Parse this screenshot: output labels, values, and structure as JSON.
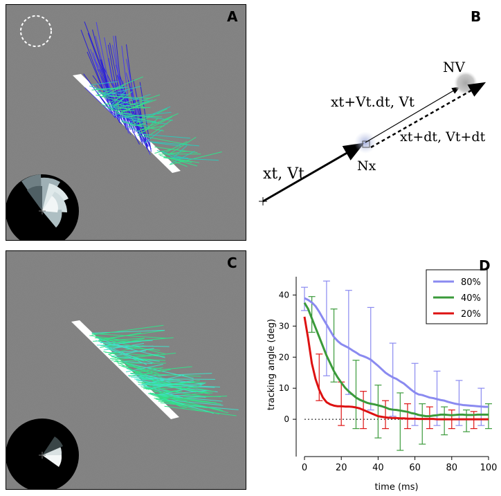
{
  "panels": {
    "A": {
      "label": "A"
    },
    "B": {
      "label": "B"
    },
    "C": {
      "label": "C"
    },
    "D": {
      "label": "D"
    }
  },
  "diagram": {
    "state_t": "xt, Vt",
    "state_pred": "xt+Vt.dt, Vt",
    "state_next": "xt+dt, Vt+dt",
    "noise_x": "Nx",
    "noise_v": "NV"
  },
  "colors": {
    "stimulus_bg": "#7f7f7f",
    "bar": "#ffffff",
    "series_80": "#8a8af0",
    "series_40": "#3a9a3a",
    "series_20": "#dd1111",
    "vectors_blue": "#2a20d8",
    "vectors_green": "#33e08a"
  },
  "chart_data": {
    "type": "line",
    "xlabel": "time (ms)",
    "ylabel": "tracking angle (deg)",
    "xlim": [
      0,
      100
    ],
    "ylim": [
      -12,
      45
    ],
    "xticks": [
      0,
      20,
      40,
      60,
      80,
      100
    ],
    "yticks": [
      0,
      10,
      20,
      30,
      40
    ],
    "legend_position": "top-right",
    "baseline": {
      "y": 0,
      "style": "dotted"
    },
    "x": [
      0,
      2,
      4,
      6,
      8,
      10,
      12,
      14,
      16,
      18,
      20,
      22,
      24,
      26,
      28,
      30,
      32,
      34,
      36,
      38,
      40,
      42,
      44,
      46,
      48,
      50,
      52,
      54,
      56,
      58,
      60,
      62,
      64,
      66,
      68,
      70,
      72,
      74,
      76,
      78,
      80,
      82,
      84,
      86,
      88,
      90,
      92,
      94,
      96,
      98,
      100
    ],
    "series": [
      {
        "name": "80%",
        "color": "#8a8af0",
        "values": [
          39,
          38.4,
          37.6,
          36.4,
          34.6,
          32.5,
          30.5,
          28.5,
          26.5,
          25.2,
          24.2,
          23.6,
          23.0,
          22.2,
          21.5,
          20.7,
          20.3,
          19.8,
          19.2,
          18.2,
          17.2,
          16.1,
          15.0,
          14.2,
          13.5,
          13.0,
          12.2,
          11.5,
          10.5,
          9.5,
          8.6,
          8.0,
          7.8,
          7.4,
          7.0,
          6.8,
          6.5,
          6.2,
          6.0,
          5.6,
          5.3,
          5.0,
          4.8,
          4.6,
          4.5,
          4.4,
          4.3,
          4.2,
          4.1,
          4.0,
          4.0
        ],
        "errorbars": {
          "x": [
            0,
            12,
            24,
            36,
            48,
            60,
            72,
            84,
            96
          ],
          "low": [
            35,
            14,
            8,
            3,
            1,
            -2,
            -2,
            -2,
            -2
          ],
          "high": [
            42.5,
            44.5,
            41.5,
            36,
            24.5,
            18,
            15.5,
            12.5,
            10
          ]
        }
      },
      {
        "name": "40%",
        "color": "#3a9a3a",
        "values": [
          37.5,
          35.5,
          32.5,
          29.5,
          26.5,
          23.5,
          20.5,
          18.0,
          15.5,
          13.5,
          11.8,
          10.2,
          9.0,
          8.0,
          7.0,
          6.3,
          5.8,
          5.3,
          5.0,
          4.8,
          4.5,
          4.2,
          3.8,
          3.3,
          3.1,
          3.0,
          2.8,
          2.6,
          2.4,
          2.0,
          1.8,
          1.4,
          1.2,
          1.0,
          1.0,
          1.2,
          1.3,
          1.5,
          1.5,
          1.4,
          1.3,
          1.4,
          1.5,
          1.5,
          1.4,
          1.4,
          1.4,
          1.5,
          1.5,
          1.5,
          1.5
        ],
        "errorbars": {
          "x": [
            4,
            16,
            28,
            40,
            52,
            64,
            76,
            88,
            100
          ],
          "low": [
            28,
            12,
            -3,
            -6,
            -10,
            -8,
            -5,
            -4,
            -3
          ],
          "high": [
            39.5,
            35.5,
            19,
            11,
            8.5,
            5,
            4,
            3,
            5
          ]
        }
      },
      {
        "name": "20%",
        "color": "#dd1111",
        "values": [
          33,
          26,
          18,
          13,
          9.5,
          7.0,
          5.5,
          4.8,
          4.4,
          4.2,
          4.2,
          4.1,
          4.1,
          4.0,
          3.8,
          3.5,
          3.0,
          2.5,
          2.0,
          1.5,
          1.0,
          0.8,
          0.6,
          0.5,
          0.4,
          0.4,
          0.3,
          0.3,
          0.2,
          0.2,
          0.2,
          0.1,
          0.1,
          0.1,
          0.1,
          0.1,
          0.0,
          0.0,
          0.0,
          0.0,
          0.0,
          0.0,
          0.0,
          0.0,
          0.0,
          0.0,
          0.0,
          0.0,
          0.0,
          0.0,
          0.0
        ],
        "errorbars": {
          "x": [
            8,
            20,
            32,
            44,
            56,
            68,
            80,
            92
          ],
          "low": [
            6,
            -2,
            -3,
            -3,
            -3,
            -3,
            -3,
            -3
          ],
          "high": [
            21,
            12,
            9,
            6,
            5,
            4,
            3,
            2.5
          ]
        }
      }
    ]
  }
}
